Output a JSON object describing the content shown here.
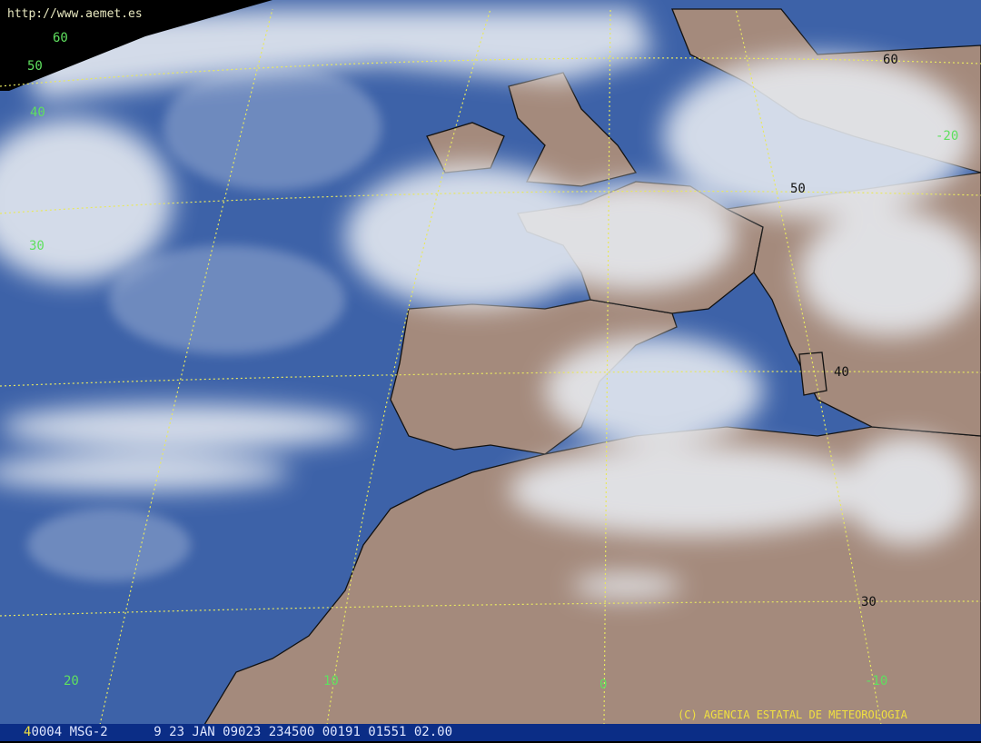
{
  "source_url": "http://www.aemet.es",
  "copyright": "(C) AGENCIA ESTATAL DE METEOROLOGIA",
  "status_bar": {
    "channel": "4",
    "fields": "0004 MSG-2      9 23 JAN 09023 234500 00191 01551 02.00"
  },
  "grid_labels": {
    "longitude": [
      "60",
      "50",
      "40",
      "30",
      "20",
      "10",
      "0",
      "-10",
      "-20"
    ],
    "latitude": [
      "60",
      "50",
      "40",
      "30"
    ]
  },
  "colors": {
    "ocean": "#3d62a8",
    "land": "#a48a7c",
    "cloud": "#e8ecf2",
    "grid": "#e8e860",
    "label": "#5fe05f",
    "status_bar": "#0b2d86"
  }
}
